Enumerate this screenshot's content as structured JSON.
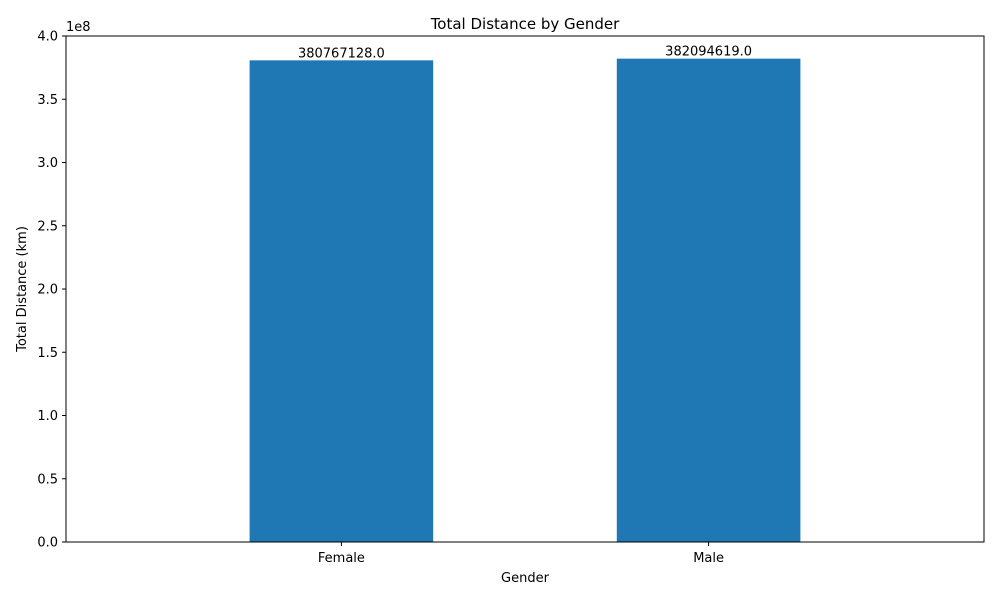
{
  "chart_data": {
    "type": "bar",
    "title": "Total Distance by Gender",
    "xlabel": "Gender",
    "ylabel": "Total Distance (km)",
    "categories": [
      "Female",
      "Male"
    ],
    "values": [
      380767128.0,
      382094619.0
    ],
    "data_labels": [
      "380767128.0",
      "382094619.0"
    ],
    "ylim": [
      0,
      400000000
    ],
    "y_scale_multiplier": "1e8",
    "y_ticks": [
      0,
      50000000,
      100000000,
      150000000,
      200000000,
      250000000,
      300000000,
      350000000,
      400000000
    ],
    "y_tick_labels": [
      "0.0",
      "0.5",
      "1.0",
      "1.5",
      "2.0",
      "2.5",
      "3.0",
      "3.5",
      "4.0"
    ],
    "bar_color": "#1f77b4",
    "grid": false
  }
}
